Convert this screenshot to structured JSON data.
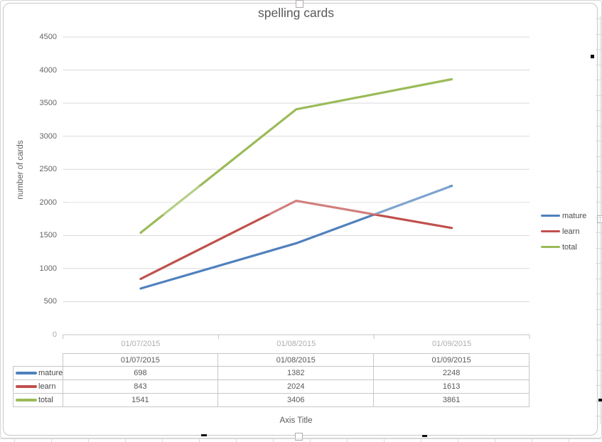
{
  "chart_data": {
    "type": "line",
    "title": "spelling cards",
    "x_axis_title": "Axis Title",
    "y_axis_title": "number of cards",
    "categories": [
      "01/07/2015",
      "01/08/2015",
      "01/09/2015"
    ],
    "series": [
      {
        "name": "mature",
        "color": "#4F81BD",
        "values": [
          698,
          1382,
          2248
        ]
      },
      {
        "name": "learn",
        "color": "#C0504D",
        "values": [
          843,
          2024,
          1613
        ]
      },
      {
        "name": "total",
        "color": "#9BBB59",
        "values": [
          1541,
          3406,
          3861
        ]
      }
    ],
    "y_ticks": [
      0,
      500,
      1000,
      1500,
      2000,
      2500,
      3000,
      3500,
      4000,
      4500
    ],
    "ylim": [
      0,
      4500
    ],
    "grid": true,
    "legend_position": "right",
    "data_table_shown": true,
    "colors": {
      "gridline": "#D9D9D9",
      "axis_line": "#C4C4C4",
      "table_border": "#C9C7C5",
      "text": "#595959",
      "x_tick_text": "#AEAEAE"
    }
  }
}
